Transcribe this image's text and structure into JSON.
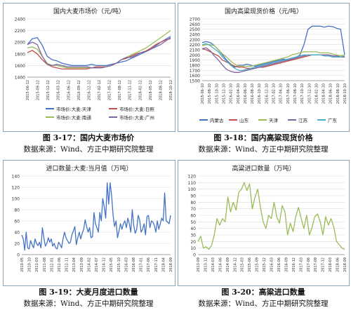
{
  "chart_data": [
    {
      "type": "line",
      "title": "国内大麦市场价（元/吨）",
      "ylim": [
        1400,
        2400
      ],
      "yticks": [
        "1400",
        "1600",
        "1800",
        "2000",
        "2200",
        "2400"
      ],
      "xticks": [
        "2015-06-12",
        "2015-09-12",
        "2015-12-12",
        "2016-03-12",
        "2016-06-12",
        "2016-09-12",
        "2016-12-12",
        "2017-02-12",
        "2017-05-12",
        "2017-08-12",
        "2017-11-12",
        "2018-02-12",
        "2018-05-12",
        "2018-08-12",
        "2018-10-12"
      ],
      "legend": "bottom",
      "series": [
        {
          "name": "市场价:大麦:天津",
          "color": "#4472c4",
          "values": [
            1960,
            2060,
            2080,
            1950,
            1760,
            1700,
            1680,
            1640,
            1620,
            1600,
            1600,
            1600,
            1600,
            1620,
            1600,
            1600,
            1600,
            1620,
            1640,
            1660,
            1680,
            1720,
            1760,
            1800,
            1840,
            1880,
            1940,
            2000,
            2050,
            2100
          ]
        },
        {
          "name": "市场价:大麦:日照",
          "color": "#c0504d",
          "values": [
            1820,
            1860,
            1800,
            1700,
            1620,
            1580,
            1560,
            1540,
            1540,
            1540,
            1540,
            1540,
            1540,
            1560,
            1580,
            1580,
            1580,
            1600,
            1640,
            1700,
            1720,
            1760,
            1800,
            1820,
            1850,
            1900,
            1960,
            2000,
            2040,
            2060
          ]
        },
        {
          "name": "市场价:大麦:南通",
          "color": "#9bbb59",
          "values": [
            1900,
            1920,
            1880,
            1760,
            1640,
            1600,
            1600,
            1580,
            1560,
            1560,
            1560,
            1560,
            1560,
            1560,
            1560,
            1560,
            1580,
            1600,
            1640,
            1700,
            1740,
            1780,
            1820,
            1860,
            1900,
            1960,
            2020,
            2080,
            2140,
            2200
          ]
        },
        {
          "name": "市场价:大麦:广州",
          "color": "#8064a2",
          "values": [
            1960,
            2000,
            1960,
            1760,
            1620,
            1600,
            1620,
            1600,
            1580,
            1580,
            1580,
            1580,
            1580,
            1560,
            1560,
            1560,
            1580,
            1600,
            1640,
            1700,
            1740,
            1740,
            1780,
            1820,
            1840,
            1880,
            1920,
            1960,
            2020,
            2080
          ]
        }
      ]
    },
    {
      "type": "line",
      "title": "国内高粱现货价格（元/吨）",
      "ylim": [
        1500,
        2700
      ],
      "yticks": [
        "1500",
        "1600",
        "1700",
        "1800",
        "1900",
        "2000",
        "2100",
        "2200",
        "2300",
        "2400",
        "2500",
        "2600",
        "2700"
      ],
      "xticks": [
        "2015-06-10",
        "2015-08-10",
        "2015-10-10",
        "2015-12-10",
        "2016-02-10",
        "2016-04-10",
        "2016-06-10",
        "2016-08-10",
        "2016-10-10",
        "2016-12-10",
        "2017-02-10",
        "2017-04-10",
        "2017-06-10",
        "2017-08-10",
        "2017-10-10",
        "2017-12-10",
        "2018-02-10",
        "2018-04-10",
        "2018-06-10",
        "2018-08-10",
        "2018-10-10"
      ],
      "legend": "bottom",
      "series": [
        {
          "name": "内蒙古",
          "color": "#4472c4",
          "values": [
            2240,
            2260,
            2240,
            2180,
            2100,
            2000,
            1900,
            1820,
            1760,
            1800,
            1800,
            1820,
            1800,
            1780,
            1800,
            1820,
            1840,
            1860,
            1880,
            1900,
            1920,
            1900,
            1920,
            1940,
            2000,
            2200,
            2500,
            2560,
            2560,
            2560,
            2540,
            2560,
            2550,
            2520,
            2500,
            2000
          ]
        },
        {
          "name": "山东",
          "color": "#c0504d",
          "values": [
            2120,
            2100,
            2060,
            2020,
            1980,
            1900,
            1860,
            1820,
            1780,
            1760,
            1760,
            1740,
            1740,
            1740,
            1760,
            1760,
            1780,
            1800,
            1820,
            1840,
            1860,
            1880,
            1900,
            1920,
            1940,
            1960,
            1980,
            2000,
            2000,
            2000,
            2000,
            2000,
            1980,
            1980,
            1960,
            1960
          ]
        },
        {
          "name": "天津",
          "color": "#9bbb59",
          "values": [
            2180,
            2200,
            2200,
            2180,
            2100,
            2020,
            1960,
            1880,
            1820,
            1780,
            1780,
            1780,
            1780,
            1800,
            1820,
            1840,
            1860,
            1880,
            1900,
            1920,
            1940,
            1960,
            2000,
            2020,
            2040,
            2060,
            2060,
            2060,
            2060,
            2040,
            2040,
            2040,
            2020,
            2000,
            1980,
            2000
          ]
        },
        {
          "name": "江苏",
          "color": "#8064a2",
          "values": [
            2120,
            2140,
            2080,
            1980,
            1900,
            1800,
            1720,
            1680,
            1660,
            1660,
            1680,
            1700,
            1720,
            1740,
            1760,
            1780,
            1800,
            1820,
            1840,
            1860,
            1880,
            1900,
            1920,
            1940,
            1960,
            1980,
            2000,
            2000,
            2000,
            2000,
            2000,
            2000,
            1980,
            1980,
            1960,
            1960
          ]
        },
        {
          "name": "广东",
          "color": "#4bacc6",
          "values": [
            2200,
            2220,
            2180,
            2120,
            2060,
            1960,
            1880,
            1800,
            1740,
            1700,
            1700,
            1720,
            1740,
            1760,
            1780,
            1800,
            1820,
            1840,
            1860,
            1880,
            1900,
            1920,
            1940,
            1960,
            1980,
            2000,
            2000,
            2000,
            2000,
            2000,
            1980,
            1980,
            1960,
            1960,
            1960,
            1980
          ]
        }
      ]
    },
    {
      "type": "line",
      "title": "进口数量:大麦:当月值（万吨）",
      "ylim": [
        0,
        140
      ],
      "yticks": [
        "0",
        "20",
        "40",
        "60",
        "80",
        "100",
        "120",
        "140"
      ],
      "xticks": [
        "2010-05",
        "2010-10",
        "2011-03",
        "2011-08",
        "2012-01",
        "2012-06",
        "2012-11",
        "2013-04",
        "2013-09",
        "2014-02",
        "2014-07",
        "2014-12",
        "2015-05",
        "2015-10",
        "2016-03",
        "2016-08",
        "2017-01",
        "2017-06",
        "2017-11",
        "2018-04",
        "2018-09"
      ],
      "series": [
        {
          "name": "",
          "color": "#4472c4",
          "values": [
            35,
            28,
            8,
            40,
            12,
            10,
            25,
            18,
            12,
            28,
            20,
            16,
            22,
            12,
            48,
            30,
            15,
            20,
            30,
            22,
            28,
            15,
            20,
            12,
            10,
            22,
            18,
            12,
            28,
            40,
            30,
            25,
            20,
            22,
            35,
            42,
            50,
            18,
            30,
            40,
            28,
            38,
            45,
            62,
            50,
            40,
            48,
            30,
            32,
            75,
            55,
            48,
            40,
            75,
            60,
            100,
            85,
            65,
            128,
            90,
            128,
            105,
            70,
            50,
            60,
            30,
            42,
            55,
            45,
            55,
            60,
            48,
            65,
            55,
            40,
            80,
            52,
            38,
            45,
            70,
            62,
            40,
            45,
            55,
            35,
            68,
            70,
            48,
            60,
            58,
            52,
            40,
            60,
            45,
            55,
            65,
            60,
            110,
            60,
            58,
            55,
            70
          ]
        }
      ]
    },
    {
      "type": "line",
      "title": "高粱进口数量（万吨）",
      "ylim": [
        0,
        120
      ],
      "yticks": [
        "0",
        "10",
        "20",
        "30",
        "40",
        "50",
        "60",
        "70",
        "80",
        "90",
        "100",
        "110",
        "120"
      ],
      "xticks": [
        "2013-09",
        "2013-12",
        "2014-03",
        "2014-06",
        "2014-09",
        "2014-12",
        "2015-03",
        "2015-06",
        "2015-09",
        "2015-12",
        "2016-03",
        "2016-06",
        "2016-09",
        "2016-12",
        "2017-03",
        "2017-06",
        "2017-09",
        "2017-12",
        "2018-03",
        "2018-06",
        "2018-09"
      ],
      "series": [
        {
          "name": "",
          "color": "#9bbb59",
          "values": [
            20,
            28,
            10,
            12,
            8,
            14,
            30,
            55,
            45,
            55,
            50,
            88,
            65,
            80,
            68,
            95,
            100,
            110,
            98,
            108,
            70,
            88,
            100,
            72,
            50,
            40,
            60,
            55,
            80,
            58,
            48,
            75,
            65,
            30,
            48,
            35,
            58,
            72,
            55,
            40,
            60,
            30,
            42,
            58,
            62,
            50,
            30,
            58,
            45,
            55,
            42,
            20,
            15,
            10,
            8
          ]
        }
      ]
    }
  ],
  "captions": [
    {
      "fig": "图 3-17：国内大麦市场价",
      "src": "数据来源：Wind、方正中期研究院整理"
    },
    {
      "fig": "图 3-18：国内高粱现货价格",
      "src": "数据来源：Wind、方正中期研究院整理"
    },
    {
      "fig": "图 3-19：大麦月度进口数量",
      "src": "数据来源：Wind、方正中期研究院整理"
    },
    {
      "fig": "图 3-20：高粱进口数量",
      "src": "数据来源：Wind、方正中期研究院整理"
    }
  ]
}
